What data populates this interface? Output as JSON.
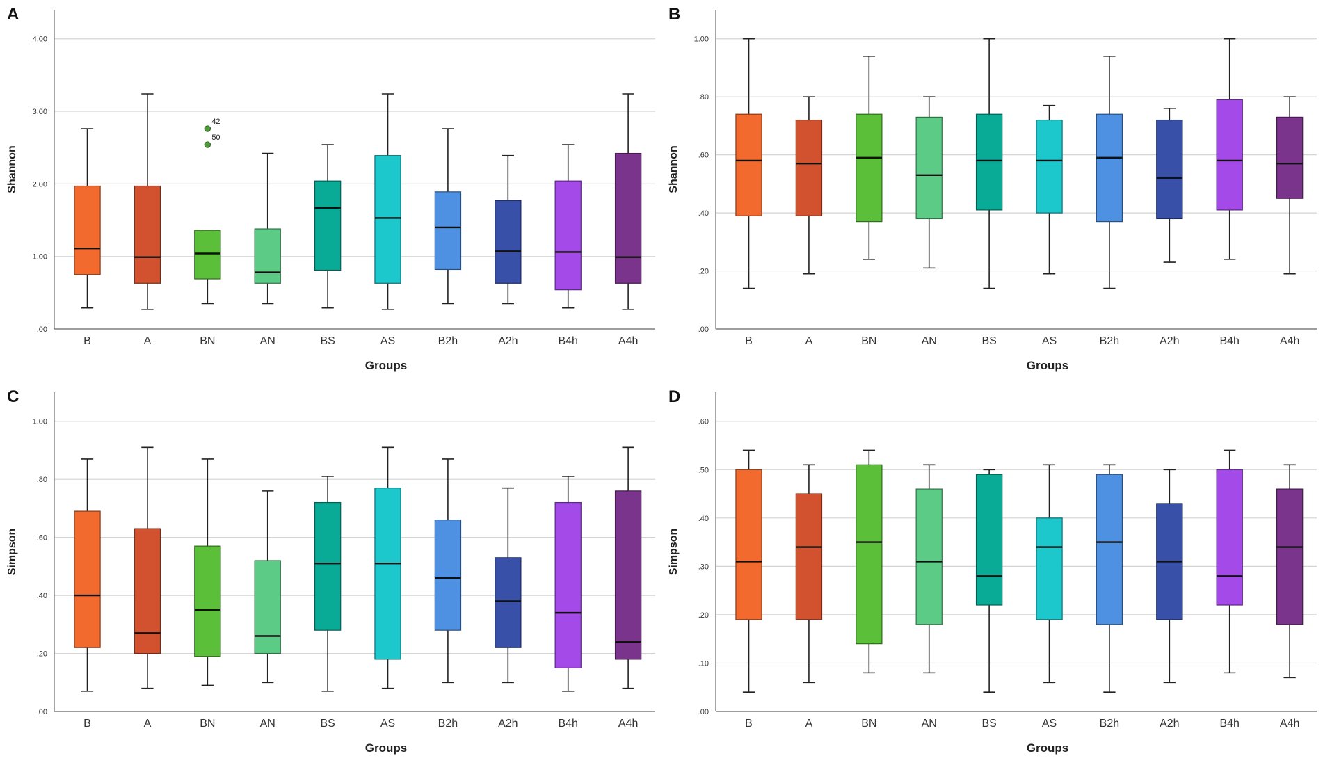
{
  "chart_data": [
    {
      "type": "boxplot",
      "panel_label": "A",
      "ylabel": "Shannon",
      "xlabel": "Groups",
      "ylim": [
        0,
        4.4
      ],
      "yticks": [
        0,
        1,
        2,
        3,
        4
      ],
      "ytick_labels": [
        ".00",
        "1.00",
        "2.00",
        "3.00",
        "4.00"
      ],
      "categories": [
        "B",
        "A",
        "BN",
        "AN",
        "BS",
        "AS",
        "B2h",
        "A2h",
        "B4h",
        "A4h"
      ],
      "boxes": [
        {
          "min": 0.29,
          "q1": 0.75,
          "median": 1.11,
          "q3": 1.97,
          "max": 2.76
        },
        {
          "min": 0.27,
          "q1": 0.63,
          "median": 0.99,
          "q3": 1.97,
          "max": 3.24
        },
        {
          "min": 0.35,
          "q1": 0.69,
          "median": 1.04,
          "q3": 1.36,
          "max": 1.36
        },
        {
          "min": 0.35,
          "q1": 0.63,
          "median": 0.78,
          "q3": 1.38,
          "max": 2.42
        },
        {
          "min": 0.29,
          "q1": 0.81,
          "median": 1.67,
          "q3": 2.04,
          "max": 2.54
        },
        {
          "min": 0.27,
          "q1": 0.63,
          "median": 1.53,
          "q3": 2.39,
          "max": 3.24
        },
        {
          "min": 0.35,
          "q1": 0.82,
          "median": 1.4,
          "q3": 1.89,
          "max": 2.76
        },
        {
          "min": 0.35,
          "q1": 0.63,
          "median": 1.07,
          "q3": 1.77,
          "max": 2.39
        },
        {
          "min": 0.29,
          "q1": 0.54,
          "median": 1.06,
          "q3": 2.04,
          "max": 2.54
        },
        {
          "min": 0.27,
          "q1": 0.63,
          "median": 0.99,
          "q3": 2.42,
          "max": 3.24
        }
      ],
      "outliers": [
        {
          "group": "BN",
          "value": 2.76,
          "label": "42"
        },
        {
          "group": "BN",
          "value": 2.54,
          "label": "50"
        }
      ]
    },
    {
      "type": "boxplot",
      "panel_label": "B",
      "ylabel": "Shannon",
      "xlabel": "Groups",
      "ylim": [
        0,
        1.1
      ],
      "yticks": [
        0,
        0.2,
        0.4,
        0.6,
        0.8,
        1.0
      ],
      "ytick_labels": [
        ".00",
        ".20",
        ".40",
        ".60",
        ".80",
        "1.00"
      ],
      "categories": [
        "B",
        "A",
        "BN",
        "AN",
        "BS",
        "AS",
        "B2h",
        "A2h",
        "B4h",
        "A4h"
      ],
      "boxes": [
        {
          "min": 0.14,
          "q1": 0.39,
          "median": 0.58,
          "q3": 0.74,
          "max": 1.0
        },
        {
          "min": 0.19,
          "q1": 0.39,
          "median": 0.57,
          "q3": 0.72,
          "max": 0.8
        },
        {
          "min": 0.24,
          "q1": 0.37,
          "median": 0.59,
          "q3": 0.74,
          "max": 0.94
        },
        {
          "min": 0.21,
          "q1": 0.38,
          "median": 0.53,
          "q3": 0.73,
          "max": 0.8
        },
        {
          "min": 0.14,
          "q1": 0.41,
          "median": 0.58,
          "q3": 0.74,
          "max": 1.0
        },
        {
          "min": 0.19,
          "q1": 0.4,
          "median": 0.58,
          "q3": 0.72,
          "max": 0.77
        },
        {
          "min": 0.14,
          "q1": 0.37,
          "median": 0.59,
          "q3": 0.74,
          "max": 0.94
        },
        {
          "min": 0.23,
          "q1": 0.38,
          "median": 0.52,
          "q3": 0.72,
          "max": 0.76
        },
        {
          "min": 0.24,
          "q1": 0.41,
          "median": 0.58,
          "q3": 0.79,
          "max": 1.0
        },
        {
          "min": 0.19,
          "q1": 0.45,
          "median": 0.57,
          "q3": 0.73,
          "max": 0.8
        }
      ],
      "outliers": []
    },
    {
      "type": "boxplot",
      "panel_label": "C",
      "ylabel": "Simpson",
      "xlabel": "Groups",
      "ylim": [
        0,
        1.1
      ],
      "yticks": [
        0,
        0.2,
        0.4,
        0.6,
        0.8,
        1.0
      ],
      "ytick_labels": [
        ".00",
        ".20",
        ".40",
        ".60",
        ".80",
        "1.00"
      ],
      "categories": [
        "B",
        "A",
        "BN",
        "AN",
        "BS",
        "AS",
        "B2h",
        "A2h",
        "B4h",
        "A4h"
      ],
      "boxes": [
        {
          "min": 0.07,
          "q1": 0.22,
          "median": 0.4,
          "q3": 0.69,
          "max": 0.87
        },
        {
          "min": 0.08,
          "q1": 0.2,
          "median": 0.27,
          "q3": 0.63,
          "max": 0.91
        },
        {
          "min": 0.09,
          "q1": 0.19,
          "median": 0.35,
          "q3": 0.57,
          "max": 0.87
        },
        {
          "min": 0.1,
          "q1": 0.2,
          "median": 0.26,
          "q3": 0.52,
          "max": 0.76
        },
        {
          "min": 0.07,
          "q1": 0.28,
          "median": 0.51,
          "q3": 0.72,
          "max": 0.81
        },
        {
          "min": 0.08,
          "q1": 0.18,
          "median": 0.51,
          "q3": 0.77,
          "max": 0.91
        },
        {
          "min": 0.1,
          "q1": 0.28,
          "median": 0.46,
          "q3": 0.66,
          "max": 0.87
        },
        {
          "min": 0.1,
          "q1": 0.22,
          "median": 0.38,
          "q3": 0.53,
          "max": 0.77
        },
        {
          "min": 0.07,
          "q1": 0.15,
          "median": 0.34,
          "q3": 0.72,
          "max": 0.81
        },
        {
          "min": 0.08,
          "q1": 0.18,
          "median": 0.24,
          "q3": 0.76,
          "max": 0.91
        }
      ],
      "outliers": []
    },
    {
      "type": "boxplot",
      "panel_label": "D",
      "ylabel": "Simpson",
      "xlabel": "Groups",
      "ylim": [
        0,
        0.66
      ],
      "yticks": [
        0,
        0.1,
        0.2,
        0.3,
        0.4,
        0.5,
        0.6
      ],
      "ytick_labels": [
        ".00",
        ".10",
        ".20",
        ".30",
        ".40",
        ".50",
        ".60"
      ],
      "categories": [
        "B",
        "A",
        "BN",
        "AN",
        "BS",
        "AS",
        "B2h",
        "A2h",
        "B4h",
        "A4h"
      ],
      "boxes": [
        {
          "min": 0.04,
          "q1": 0.19,
          "median": 0.31,
          "q3": 0.5,
          "max": 0.54
        },
        {
          "min": 0.06,
          "q1": 0.19,
          "median": 0.34,
          "q3": 0.45,
          "max": 0.51
        },
        {
          "min": 0.08,
          "q1": 0.14,
          "median": 0.35,
          "q3": 0.51,
          "max": 0.54
        },
        {
          "min": 0.08,
          "q1": 0.18,
          "median": 0.31,
          "q3": 0.46,
          "max": 0.51
        },
        {
          "min": 0.04,
          "q1": 0.22,
          "median": 0.28,
          "q3": 0.49,
          "max": 0.5
        },
        {
          "min": 0.06,
          "q1": 0.19,
          "median": 0.34,
          "q3": 0.4,
          "max": 0.51
        },
        {
          "min": 0.04,
          "q1": 0.18,
          "median": 0.35,
          "q3": 0.49,
          "max": 0.51
        },
        {
          "min": 0.06,
          "q1": 0.19,
          "median": 0.31,
          "q3": 0.43,
          "max": 0.5
        },
        {
          "min": 0.08,
          "q1": 0.22,
          "median": 0.28,
          "q3": 0.5,
          "max": 0.54
        },
        {
          "min": 0.07,
          "q1": 0.18,
          "median": 0.34,
          "q3": 0.46,
          "max": 0.51
        }
      ],
      "outliers": []
    }
  ],
  "colors": {
    "B": "#f26a2e",
    "A": "#d2522f",
    "BN": "#5cbf3a",
    "AN": "#5ccb86",
    "BS": "#0aab96",
    "AS": "#1cc8cc",
    "B2h": "#4e90e2",
    "A2h": "#3850a8",
    "B4h": "#a44ae8",
    "A4h": "#7b348c",
    "outlier": "#4f9a3a",
    "grid": "#d4d4d4",
    "axis": "#6b6b6b"
  }
}
